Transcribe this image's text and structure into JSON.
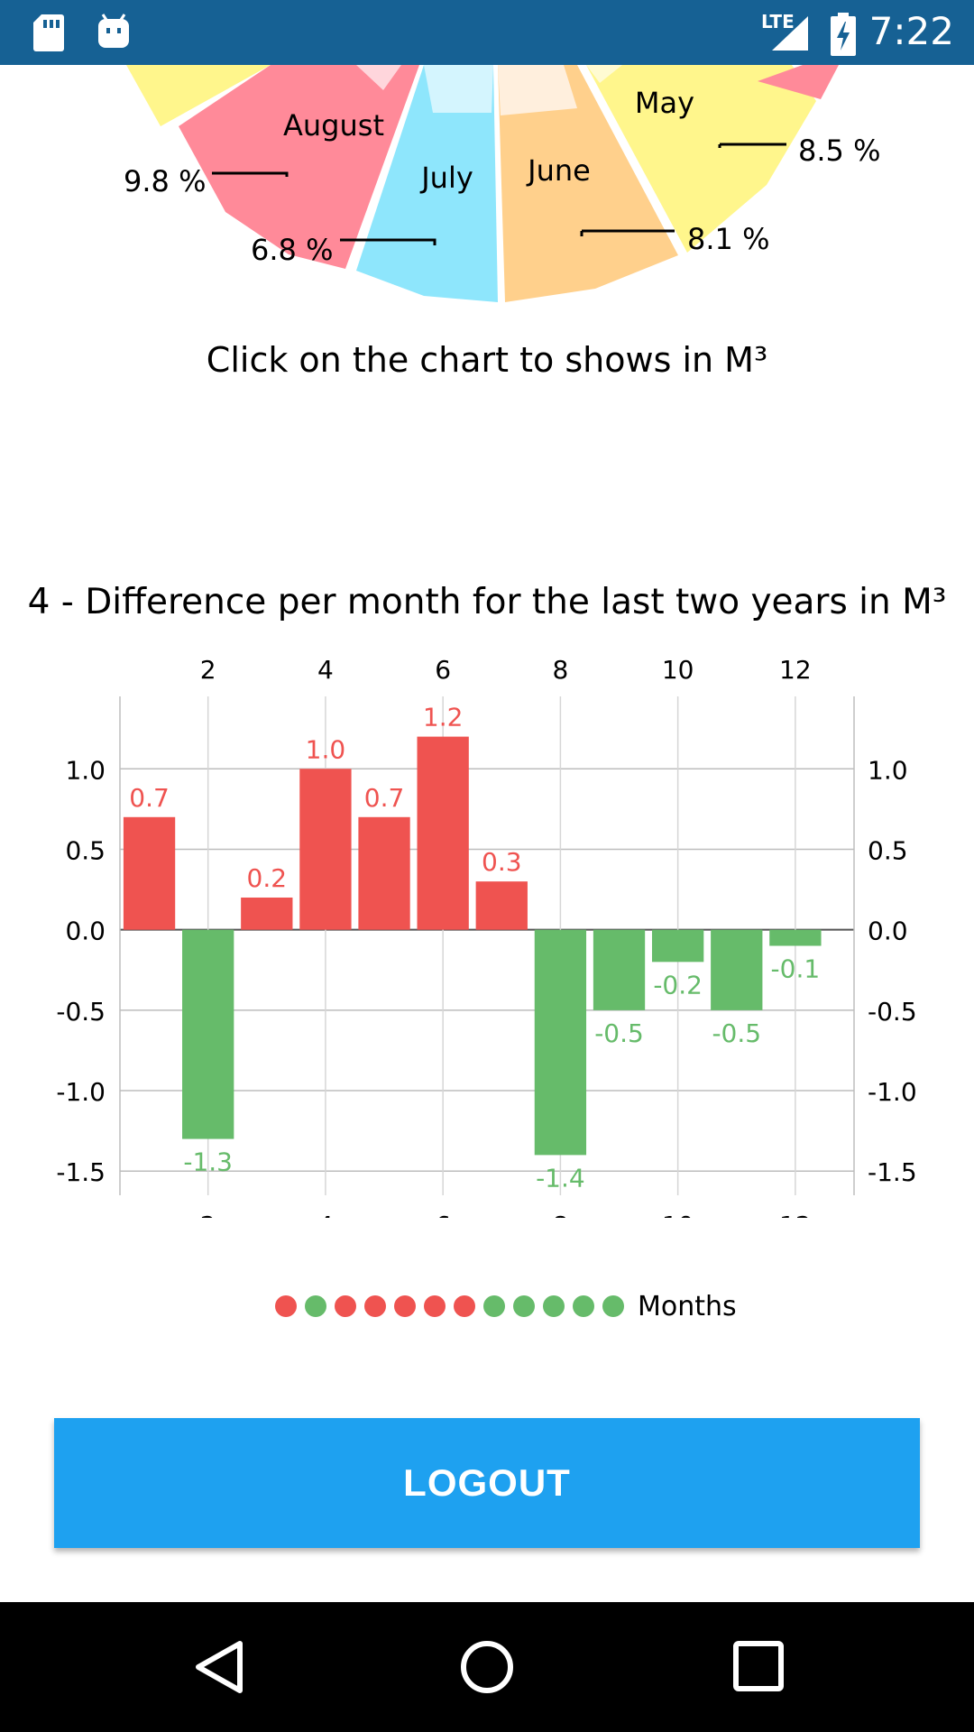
{
  "status_bar": {
    "time": "7:22",
    "network_label": "LTE",
    "icons": [
      "sd-card-icon",
      "android-debug-icon",
      "signal-icon",
      "battery-charging-icon"
    ]
  },
  "pie": {
    "slices": [
      {
        "label": "August",
        "value": "9.8 %",
        "color": "#ff8a99"
      },
      {
        "label": "July",
        "value": "6.8 %",
        "color": "#8ee6fc"
      },
      {
        "label": "June",
        "value": "8.1 %",
        "color": "#ffd08c"
      },
      {
        "label": "May",
        "value": "8.5 %",
        "color": "#fff68c"
      }
    ],
    "caption": "Click on the chart to shows in M³"
  },
  "chart_data": {
    "type": "bar",
    "title": "4 - Difference per month for the last two years in M³",
    "x": [
      1,
      2,
      3,
      4,
      5,
      6,
      7,
      8,
      9,
      10,
      11,
      12
    ],
    "values": [
      0.7,
      -1.3,
      0.2,
      1.0,
      0.7,
      1.2,
      0.3,
      -1.4,
      -0.5,
      -0.2,
      -0.5,
      -0.1
    ],
    "data_labels": [
      "0.7",
      "-1.3",
      "0.2",
      "1.0",
      "0.7",
      "1.2",
      "0.3",
      "-1.4",
      "-0.5",
      "-0.2",
      "-0.5",
      "-0.1"
    ],
    "x_ticks": [
      "2",
      "4",
      "6",
      "8",
      "10",
      "12"
    ],
    "y_ticks": [
      "1.0",
      "0.5",
      "0.0",
      "-0.5",
      "-1.0",
      "-1.5"
    ],
    "ylim": [
      -1.65,
      1.45
    ],
    "xlim": [
      0.5,
      13
    ],
    "positive_color": "#ef5350",
    "negative_color": "#66bb6a",
    "grid": true,
    "legend": {
      "label": "Months",
      "placement": "bottom-center"
    }
  },
  "logout": {
    "label": "LOGOUT"
  }
}
